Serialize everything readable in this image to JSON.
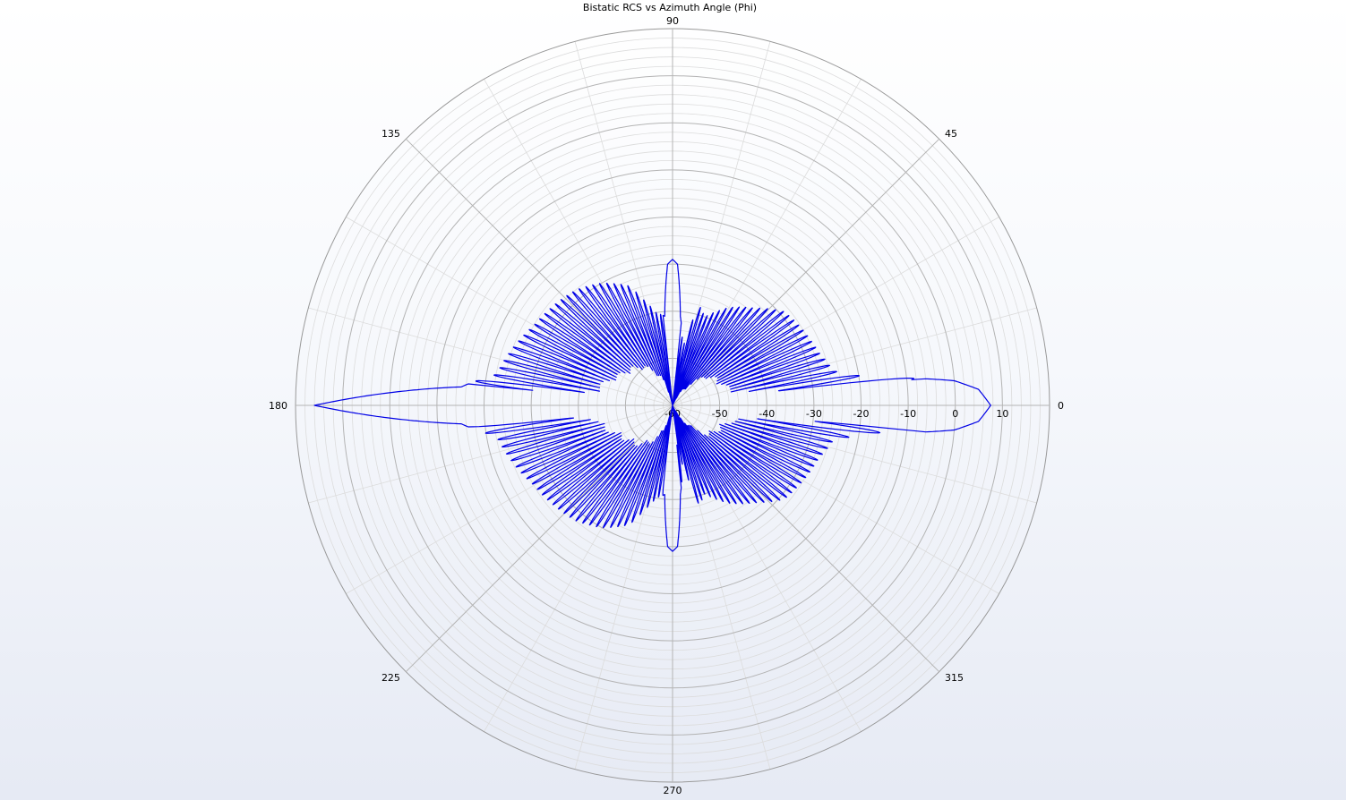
{
  "chart_data": {
    "type": "polar-line",
    "title": "Bistatic RCS vs Azimuth Angle (Phi)",
    "angular_axis": {
      "unit": "deg",
      "direction": "counterclockwise",
      "zero_at": "right",
      "tick_labels": [
        "0",
        "45",
        "90",
        "135",
        "180",
        "225",
        "270",
        "315"
      ],
      "tick_values": [
        0,
        45,
        90,
        135,
        180,
        225,
        270,
        315
      ],
      "minor_step": 15
    },
    "radial_axis": {
      "range": [
        -60,
        20
      ],
      "tick_labels": [
        "-60",
        "-50",
        "-40",
        "-30",
        "-20",
        "-10",
        "0",
        "10"
      ],
      "tick_values": [
        -60,
        -50,
        -40,
        -30,
        -20,
        -10,
        0,
        10
      ],
      "minor_step": 2
    },
    "grid": true,
    "colors": {
      "line": "#0000e6",
      "grid_major": "#b4b4b4",
      "grid_minor": "#dcdcdc",
      "axis": "#999999"
    },
    "series": [
      {
        "color": "#0000e6",
        "points": [
          [
            0,
            7.5
          ],
          [
            3,
            5
          ],
          [
            5,
            0
          ],
          [
            8,
            -18
          ],
          [
            12,
            -25
          ],
          [
            20,
            -27
          ],
          [
            30,
            -28
          ],
          [
            40,
            -29
          ],
          [
            50,
            -33
          ],
          [
            60,
            -36
          ],
          [
            70,
            -40
          ],
          [
            75,
            -38
          ],
          [
            80,
            -48
          ],
          [
            85,
            -41
          ],
          [
            88,
            -30
          ],
          [
            90,
            -29
          ],
          [
            92,
            -30
          ],
          [
            95,
            -41
          ],
          [
            100,
            -40
          ],
          [
            105,
            -37
          ],
          [
            110,
            -33
          ],
          [
            120,
            -30
          ],
          [
            130,
            -28
          ],
          [
            140,
            -27
          ],
          [
            150,
            -26
          ],
          [
            160,
            -24
          ],
          [
            170,
            -22
          ],
          [
            175,
            -15
          ],
          [
            180,
            16
          ],
          [
            185,
            -15
          ],
          [
            190,
            -22
          ],
          [
            200,
            -24
          ],
          [
            210,
            -26
          ],
          [
            220,
            -27
          ],
          [
            230,
            -28
          ],
          [
            240,
            -30
          ],
          [
            250,
            -33
          ],
          [
            255,
            -37
          ],
          [
            260,
            -40
          ],
          [
            265,
            -41
          ],
          [
            268,
            -30
          ],
          [
            270,
            -29
          ],
          [
            272,
            -30
          ],
          [
            275,
            -41
          ],
          [
            280,
            -48
          ],
          [
            285,
            -38
          ],
          [
            290,
            -40
          ],
          [
            300,
            -36
          ],
          [
            310,
            -33
          ],
          [
            320,
            -29
          ],
          [
            330,
            -28
          ],
          [
            340,
            -27
          ],
          [
            348,
            -25
          ],
          [
            352,
            -18
          ],
          [
            355,
            0
          ],
          [
            357,
            5
          ],
          [
            360,
            7.5
          ]
        ]
      }
    ]
  }
}
